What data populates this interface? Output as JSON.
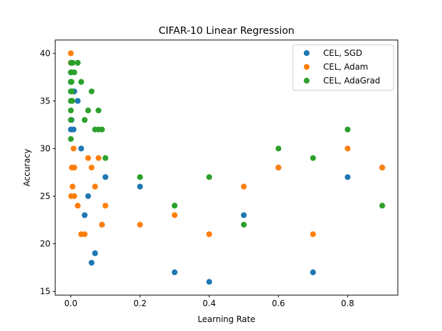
{
  "chart_data": {
    "type": "scatter",
    "title": "CIFAR-10 Linear Regression",
    "xlabel": "Learning Rate",
    "ylabel": "Accuracy",
    "xlim": [
      -0.045,
      0.945
    ],
    "ylim": [
      14.6,
      41.4
    ],
    "xticks": [
      0.0,
      0.2,
      0.4,
      0.6,
      0.8
    ],
    "xtick_labels": [
      "0.0",
      "0.2",
      "0.4",
      "0.6",
      "0.8"
    ],
    "yticks": [
      15,
      20,
      25,
      30,
      35,
      40
    ],
    "ytick_labels": [
      "15",
      "20",
      "25",
      "30",
      "35",
      "40"
    ],
    "grid": false,
    "legend_position": "top-right",
    "series": [
      {
        "name": "CEL, SGD",
        "color": "#1f77b4",
        "points": [
          [
            0.0001,
            39
          ],
          [
            0.0001,
            38
          ],
          [
            0.0001,
            37
          ],
          [
            0.0001,
            36
          ],
          [
            0.0001,
            32
          ],
          [
            0.001,
            39
          ],
          [
            0.001,
            38
          ],
          [
            0.002,
            33
          ],
          [
            0.005,
            36
          ],
          [
            0.008,
            32
          ],
          [
            0.01,
            36
          ],
          [
            0.02,
            35
          ],
          [
            0.03,
            30
          ],
          [
            0.04,
            23
          ],
          [
            0.05,
            25
          ],
          [
            0.06,
            18
          ],
          [
            0.07,
            19
          ],
          [
            0.09,
            22
          ],
          [
            0.1,
            27
          ],
          [
            0.2,
            26
          ],
          [
            0.3,
            17
          ],
          [
            0.4,
            16
          ],
          [
            0.5,
            23
          ],
          [
            0.6,
            28
          ],
          [
            0.7,
            17
          ],
          [
            0.8,
            27
          ],
          [
            0.9,
            28
          ]
        ]
      },
      {
        "name": "CEL, Adam",
        "color": "#ff7f0e",
        "points": [
          [
            0.0001,
            40
          ],
          [
            0.0001,
            39
          ],
          [
            0.001,
            25
          ],
          [
            0.003,
            28
          ],
          [
            0.005,
            26
          ],
          [
            0.008,
            30
          ],
          [
            0.01,
            28
          ],
          [
            0.01,
            25
          ],
          [
            0.02,
            24
          ],
          [
            0.03,
            21
          ],
          [
            0.04,
            21
          ],
          [
            0.05,
            29
          ],
          [
            0.06,
            28
          ],
          [
            0.07,
            26
          ],
          [
            0.08,
            29
          ],
          [
            0.09,
            22
          ],
          [
            0.1,
            24
          ],
          [
            0.2,
            22
          ],
          [
            0.3,
            23
          ],
          [
            0.4,
            21
          ],
          [
            0.5,
            26
          ],
          [
            0.6,
            28
          ],
          [
            0.7,
            21
          ],
          [
            0.8,
            30
          ],
          [
            0.9,
            28
          ]
        ]
      },
      {
        "name": "CEL, AdaGrad",
        "color": "#2ca02c",
        "points": [
          [
            0.0001,
            38
          ],
          [
            0.0001,
            37
          ],
          [
            0.0001,
            36
          ],
          [
            0.0001,
            35
          ],
          [
            0.0001,
            34
          ],
          [
            0.0001,
            33
          ],
          [
            0.0001,
            31
          ],
          [
            0.001,
            39
          ],
          [
            0.001,
            38
          ],
          [
            0.002,
            37
          ],
          [
            0.003,
            36
          ],
          [
            0.004,
            35
          ],
          [
            0.005,
            39
          ],
          [
            0.01,
            38
          ],
          [
            0.02,
            39
          ],
          [
            0.03,
            37
          ],
          [
            0.04,
            33
          ],
          [
            0.05,
            34
          ],
          [
            0.06,
            36
          ],
          [
            0.07,
            32
          ],
          [
            0.08,
            34
          ],
          [
            0.08,
            32
          ],
          [
            0.09,
            32
          ],
          [
            0.1,
            29
          ],
          [
            0.2,
            27
          ],
          [
            0.3,
            24
          ],
          [
            0.4,
            27
          ],
          [
            0.5,
            22
          ],
          [
            0.6,
            30
          ],
          [
            0.7,
            29
          ],
          [
            0.8,
            32
          ],
          [
            0.9,
            24
          ]
        ]
      }
    ]
  }
}
